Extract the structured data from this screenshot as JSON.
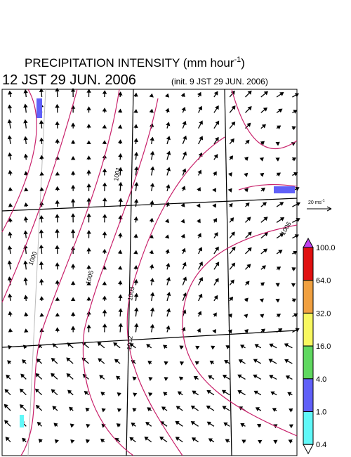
{
  "header": {
    "title": "PRECIPITATION INTENSITY (mm hour",
    "title_exponent": "-1",
    "title_close": ")",
    "valid_time": "12 JST 29 JUN. 2006",
    "init_time": "(init. 9 JST 29 JUN. 2006)"
  },
  "vector_legend": {
    "label": "20 ms",
    "exponent": "-1"
  },
  "contour_labels": [
    "1001",
    "1006",
    "1000",
    "1005",
    "1003",
    "1002"
  ],
  "colorbar": {
    "labels": [
      "100.0",
      "64.0",
      "32.0",
      "16.0",
      "4.0",
      "1.0",
      "0.4"
    ],
    "colors": [
      "#e01010",
      "#f0a040",
      "#f8f860",
      "#60d860",
      "#6060f8",
      "#60f8f8"
    ],
    "top_color": "#c040f0",
    "bottom_color": "#ffffff"
  }
}
